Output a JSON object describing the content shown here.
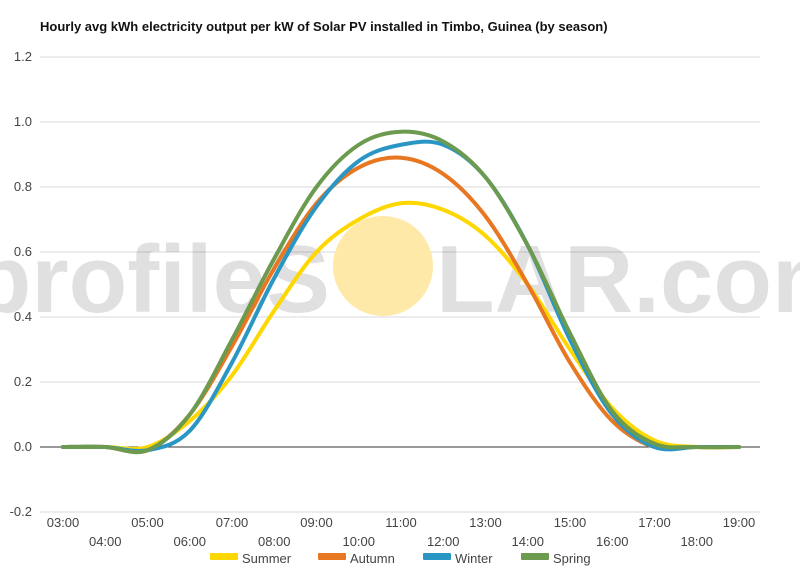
{
  "chart_data": {
    "type": "line",
    "title": "Hourly avg kWh electricity output per kW of Solar PV installed in Timbo, Guinea (by season)",
    "xlabel": "",
    "ylabel": "",
    "ylim": [
      -0.2,
      1.2
    ],
    "yticks": [
      "-0.2",
      "0.0",
      "0.2",
      "0.4",
      "0.6",
      "0.8",
      "1.0",
      "1.2"
    ],
    "x": [
      "03:00",
      "04:00",
      "05:00",
      "06:00",
      "07:00",
      "08:00",
      "09:00",
      "10:00",
      "11:00",
      "12:00",
      "13:00",
      "14:00",
      "15:00",
      "16:00",
      "17:00",
      "18:00",
      "19:00"
    ],
    "grid": true,
    "legend_position": "bottom",
    "series": [
      {
        "name": "Summer",
        "color": "#FFD700",
        "values": [
          0,
          0,
          0,
          0.08,
          0.22,
          0.42,
          0.6,
          0.7,
          0.75,
          0.73,
          0.65,
          0.5,
          0.3,
          0.12,
          0.02,
          0,
          0
        ]
      },
      {
        "name": "Autumn",
        "color": "#E87722",
        "values": [
          0,
          0,
          -0.01,
          0.1,
          0.31,
          0.55,
          0.75,
          0.86,
          0.89,
          0.84,
          0.71,
          0.5,
          0.26,
          0.08,
          0,
          0,
          0
        ]
      },
      {
        "name": "Winter",
        "color": "#2A96C3",
        "values": [
          0,
          0,
          -0.01,
          0.05,
          0.26,
          0.52,
          0.74,
          0.88,
          0.93,
          0.93,
          0.83,
          0.62,
          0.33,
          0.1,
          0,
          0,
          0
        ]
      },
      {
        "name": "Spring",
        "color": "#6C9A4E",
        "values": [
          0,
          0,
          -0.01,
          0.1,
          0.33,
          0.58,
          0.8,
          0.93,
          0.97,
          0.94,
          0.83,
          0.62,
          0.35,
          0.11,
          0.01,
          0,
          0
        ]
      }
    ]
  },
  "watermark": {
    "left": "profileS",
    "right": "LAR.com",
    "sun_color": "#FFE9A8"
  }
}
